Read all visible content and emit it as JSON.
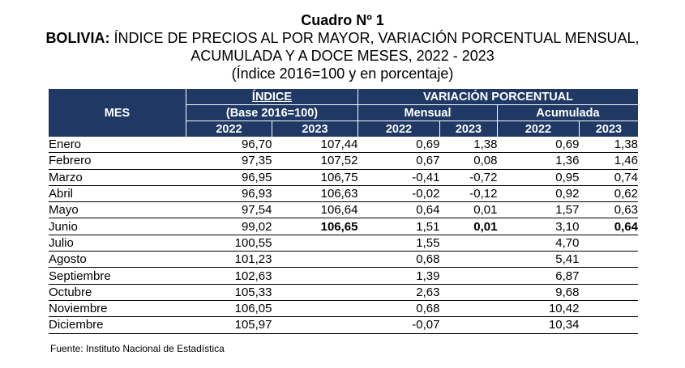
{
  "title": {
    "line1": "Cuadro Nº 1",
    "line2_bold": "BOLIVIA:",
    "line2_rest": " ÍNDICE DE PRECIOS AL POR MAYOR, VARIACIÓN PORCENTUAL MENSUAL,",
    "line3": "ACUMULADA Y A DOCE MESES, 2022 - 2023",
    "line4": "(Índice 2016=100 y en porcentaje)"
  },
  "header": {
    "mes": "MES",
    "indice": "ÍNDICE",
    "base": "(Base 2016=100)",
    "variacion": "VARIACIÓN PORCENTUAL",
    "mensual": "Mensual",
    "acumulada": "Acumulada",
    "y2022": "2022",
    "y2023": "2023"
  },
  "rows": [
    {
      "mes": "Enero",
      "i22": "96,70",
      "i23": "107,44",
      "m22": "0,69",
      "m23": "1,38",
      "a22": "0,69",
      "a23": "1,38"
    },
    {
      "mes": "Febrero",
      "i22": "97,35",
      "i23": "107,52",
      "m22": "0,67",
      "m23": "0,08",
      "a22": "1,36",
      "a23": "1,46"
    },
    {
      "mes": "Marzo",
      "i22": "96,95",
      "i23": "106,75",
      "m22": "-0,41",
      "m23": "-0,72",
      "a22": "0,95",
      "a23": "0,74"
    },
    {
      "mes": "Abril",
      "i22": "96,93",
      "i23": "106,63",
      "m22": "-0,02",
      "m23": "-0,12",
      "a22": "0,92",
      "a23": "0,62"
    },
    {
      "mes": "Mayo",
      "i22": "97,54",
      "i23": "106,64",
      "m22": "0,64",
      "m23": "0,01",
      "a22": "1,57",
      "a23": "0,63"
    },
    {
      "mes": "Junio",
      "i22": "99,02",
      "i23": "106,65",
      "m22": "1,51",
      "m23": "0,01",
      "a22": "3,10",
      "a23": "0,64"
    },
    {
      "mes": "Julio",
      "i22": "100,55",
      "i23": "",
      "m22": "1,55",
      "m23": "",
      "a22": "4,70",
      "a23": ""
    },
    {
      "mes": "Agosto",
      "i22": "101,23",
      "i23": "",
      "m22": "0,68",
      "m23": "",
      "a22": "5,41",
      "a23": ""
    },
    {
      "mes": "Septiembre",
      "i22": "102,63",
      "i23": "",
      "m22": "1,39",
      "m23": "",
      "a22": "6,87",
      "a23": ""
    },
    {
      "mes": "Octubre",
      "i22": "105,33",
      "i23": "",
      "m22": "2,63",
      "m23": "",
      "a22": "9,68",
      "a23": ""
    },
    {
      "mes": "Noviembre",
      "i22": "106,05",
      "i23": "",
      "m22": "0,68",
      "m23": "",
      "a22": "10,42",
      "a23": ""
    },
    {
      "mes": "Diciembre",
      "i22": "105,97",
      "i23": "",
      "m22": "-0,07",
      "m23": "",
      "a22": "10,34",
      "a23": ""
    }
  ],
  "source": "Fuente: Instituto Nacional de Estadística",
  "colors": {
    "header_bg": "#1f3864",
    "header_text": "#ffffff"
  }
}
